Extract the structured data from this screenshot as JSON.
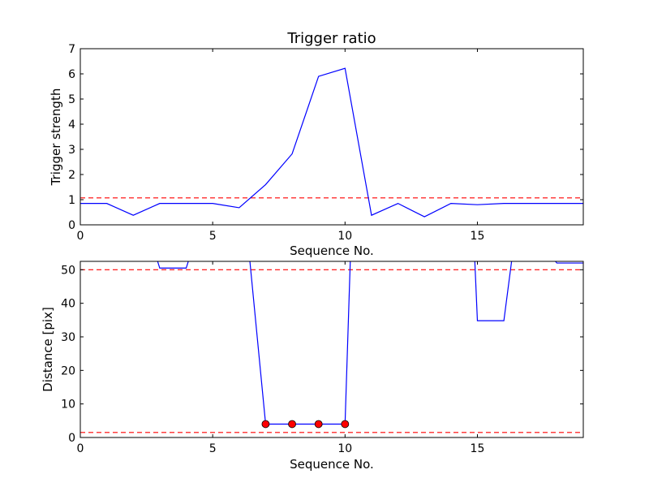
{
  "chart_data": [
    {
      "type": "line",
      "title": "Trigger ratio",
      "xlabel": "Sequence No.",
      "ylabel": "Trigger strength",
      "xlim": [
        0,
        19
      ],
      "ylim": [
        0,
        7
      ],
      "xticks": [
        0,
        5,
        10,
        15
      ],
      "yticks": [
        0,
        1,
        2,
        3,
        4,
        5,
        6,
        7
      ],
      "grid": false,
      "series": [
        {
          "x": [
            0,
            1,
            2,
            3,
            4,
            5,
            6,
            7,
            8,
            9,
            10,
            11,
            12,
            13,
            14,
            15,
            16,
            17,
            18,
            19
          ],
          "values": [
            0.85,
            0.85,
            0.38,
            0.85,
            0.85,
            0.85,
            0.68,
            1.6,
            2.82,
            5.9,
            6.22,
            0.38,
            0.85,
            0.32,
            0.85,
            0.8,
            0.85,
            0.85,
            0.85,
            0.85
          ],
          "color": "#0000ff",
          "style": "solid"
        }
      ],
      "reference_lines": [
        {
          "y": 1.07,
          "color": "#ff0000",
          "style": "dashed"
        }
      ]
    },
    {
      "type": "line",
      "title": "",
      "xlabel": "Sequence No.",
      "ylabel": "Distance [pix]",
      "xlim": [
        0,
        19
      ],
      "ylim": [
        0,
        52.5
      ],
      "xticks": [
        0,
        5,
        10,
        15
      ],
      "yticks": [
        0,
        10,
        20,
        30,
        40,
        50
      ],
      "grid": false,
      "series": [
        {
          "x": [
            2.9,
            3,
            4,
            4.1,
            6.4,
            7,
            8,
            9,
            10,
            10.2,
            14.9,
            15,
            16,
            16.3,
            17.9,
            18,
            19
          ],
          "values": [
            53,
            50.5,
            50.5,
            53,
            53,
            4,
            4,
            4,
            4,
            53,
            53,
            34.8,
            34.8,
            53,
            53,
            52,
            52
          ],
          "color": "#0000ff",
          "style": "solid"
        }
      ],
      "markers": {
        "x": [
          7,
          8,
          9,
          10
        ],
        "y": [
          4,
          4,
          4,
          4
        ],
        "color": "#ff0000"
      },
      "reference_lines": [
        {
          "y": 50,
          "color": "#ff0000",
          "style": "dashed"
        },
        {
          "y": 1.5,
          "color": "#ff0000",
          "style": "dashed"
        }
      ]
    }
  ]
}
